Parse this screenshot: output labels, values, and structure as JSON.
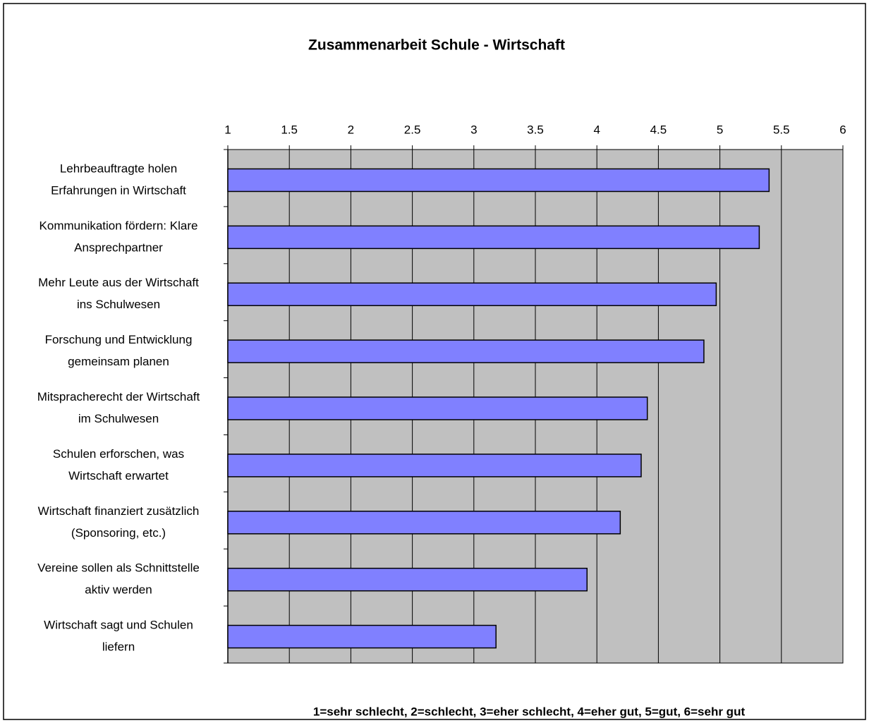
{
  "chart_data": {
    "type": "bar",
    "orientation": "horizontal",
    "title": "Zusammenarbeit Schule - Wirtschaft",
    "categories": [
      [
        "Lehrbeauftragte holen",
        "Erfahrungen in Wirtschaft"
      ],
      [
        "Kommunikation fördern: Klare",
        "Ansprechpartner"
      ],
      [
        "Mehr Leute aus der Wirtschaft",
        "ins Schulwesen"
      ],
      [
        "Forschung und Entwicklung",
        "gemeinsam planen"
      ],
      [
        "Mitspracherecht der Wirtschaft",
        "im Schulwesen"
      ],
      [
        "Schulen erforschen, was",
        "Wirtschaft erwartet"
      ],
      [
        "Wirtschaft finanziert zusätzlich",
        "(Sponsoring, etc.)"
      ],
      [
        "Vereine sollen als Schnittstelle",
        "aktiv werden"
      ],
      [
        "Wirtschaft sagt und Schulen",
        "liefern"
      ]
    ],
    "values": [
      5.4,
      5.32,
      4.97,
      4.87,
      4.41,
      4.36,
      4.19,
      3.92,
      3.18
    ],
    "color": "#8080ff",
    "xlim": [
      1,
      6
    ],
    "xticks": [
      1,
      1.5,
      2,
      2.5,
      3,
      3.5,
      4,
      4.5,
      5,
      5.5,
      6
    ],
    "grid": true,
    "note": "1=sehr schlecht, 2=schlecht, 3=eher schlecht, 4=eher gut, 5=gut, 6=sehr gut"
  }
}
